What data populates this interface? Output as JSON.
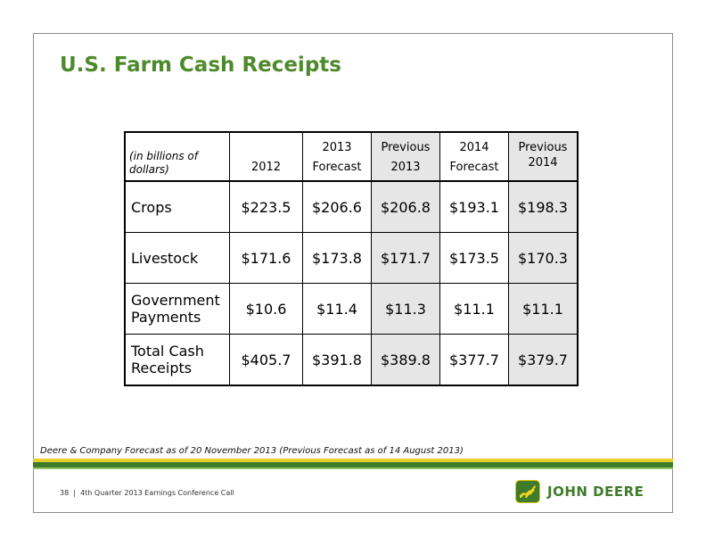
{
  "title": "U.S. Farm Cash Receipts",
  "table": {
    "headers": {
      "unit": "(in billions of dollars)",
      "col_2012": "2012",
      "col_2013_forecast_year": "2013",
      "col_2013_forecast_label": "Forecast",
      "col_prev_2013_label": "Previous",
      "col_prev_2013_year": "2013",
      "col_2014_forecast_year": "2014",
      "col_2014_forecast_label": "Forecast",
      "col_prev_2014_label": "Previous",
      "col_prev_2014_year": "2014"
    },
    "rows": [
      {
        "label": "Crops",
        "v2012": "$223.5",
        "f2013": "$206.6",
        "p2013": "$206.8",
        "f2014": "$193.1",
        "p2014": "$198.3"
      },
      {
        "label": "Livestock",
        "v2012": "$171.6",
        "f2013": "$173.8",
        "p2013": "$171.7",
        "f2014": "$173.5",
        "p2014": "$170.3"
      },
      {
        "label_line1": "Government",
        "label_line2": "Payments",
        "v2012": "$10.6",
        "f2013": "$11.4",
        "p2013": "$11.3",
        "f2014": "$11.1",
        "p2014": "$11.1"
      },
      {
        "label_line1": "Total Cash",
        "label_line2": "Receipts",
        "v2012": "$405.7",
        "f2013": "$391.8",
        "p2013": "$389.8",
        "f2014": "$377.7",
        "p2014": "$379.7"
      }
    ]
  },
  "footnote": "Deere & Company Forecast as of 20 November 2013 (Previous Forecast as of 14 August 2013)",
  "footer": {
    "page_number": "38",
    "separator": "|",
    "caption": "4th Quarter 2013 Earnings Conference Call"
  },
  "logo": {
    "icon": "leaping-deer-icon",
    "text": "JOHN DEERE"
  },
  "colors": {
    "title_green": "#4e8a2c",
    "brand_green": "#3e7b2a",
    "brand_yellow": "#e6cf2a",
    "shade": "#e6e6e6"
  }
}
